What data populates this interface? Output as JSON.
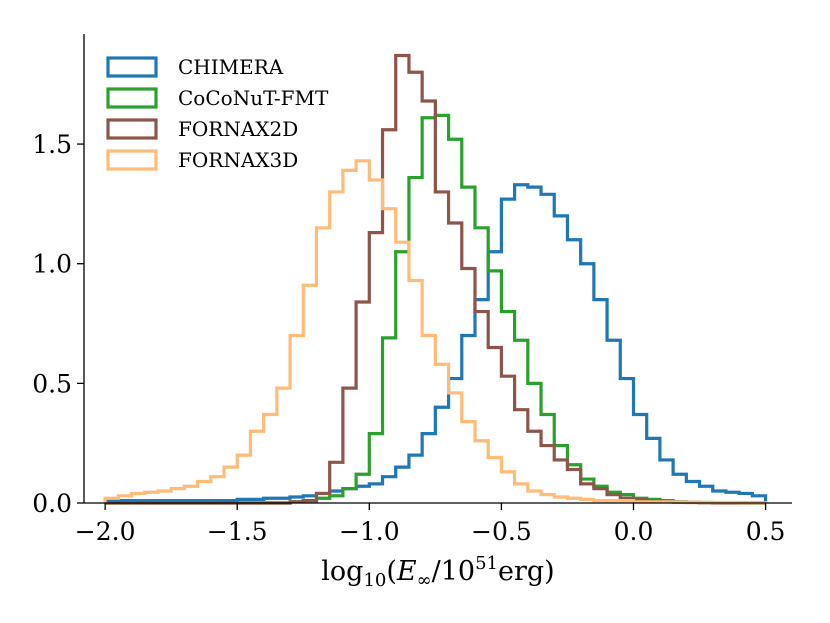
{
  "chart_data": {
    "type": "histogram",
    "xlabel": "log10(E∞/10^51 erg)",
    "ylabel": "",
    "xlim": [
      -2.08,
      0.6
    ],
    "ylim": [
      0,
      1.96
    ],
    "xticks": [
      -2.0,
      -1.5,
      -1.0,
      -0.5,
      0.0,
      0.5
    ],
    "xtick_labels": [
      "−2.0",
      "−1.5",
      "−1.0",
      "−0.5",
      "0.0",
      "0.5"
    ],
    "yticks": [
      0.0,
      0.5,
      1.0,
      1.5
    ],
    "ytick_labels": [
      "0.0",
      "0.5",
      "1.0",
      "1.5"
    ],
    "bin_edges_start": -2.0,
    "bin_width": 0.05,
    "legend_position": "top-left",
    "grid": false,
    "series": [
      {
        "name": "CHIMERA",
        "color": "#1f77b4",
        "values": [
          0.01,
          0.01,
          0.01,
          0.01,
          0.01,
          0.01,
          0.01,
          0.01,
          0.01,
          0.01,
          0.015,
          0.015,
          0.02,
          0.02,
          0.025,
          0.03,
          0.04,
          0.05,
          0.06,
          0.07,
          0.08,
          0.11,
          0.15,
          0.2,
          0.29,
          0.4,
          0.52,
          0.7,
          0.85,
          1.05,
          1.27,
          1.33,
          1.32,
          1.29,
          1.2,
          1.1,
          1.0,
          0.85,
          0.68,
          0.52,
          0.37,
          0.27,
          0.18,
          0.12,
          0.09,
          0.07,
          0.05,
          0.045,
          0.04,
          0.03
        ]
      },
      {
        "name": "CoCoNuT-FMT",
        "color": "#2ca02c",
        "values": [
          0.0,
          0.0,
          0.0,
          0.0,
          0.0,
          0.0,
          0.0,
          0.0,
          0.0,
          0.0,
          0.0,
          0.0,
          0.0,
          0.0,
          0.005,
          0.01,
          0.02,
          0.03,
          0.06,
          0.12,
          0.29,
          0.69,
          1.05,
          1.36,
          1.61,
          1.62,
          1.52,
          1.32,
          1.15,
          0.97,
          0.8,
          0.68,
          0.5,
          0.37,
          0.24,
          0.16,
          0.1,
          0.07,
          0.045,
          0.035,
          0.02,
          0.015,
          0.01,
          0.005,
          0.003,
          0.002,
          0.001,
          0.001,
          0.0,
          0.0
        ]
      },
      {
        "name": "FORNAX2D",
        "color": "#8c564b",
        "values": [
          0.0,
          0.0,
          0.0,
          0.0,
          0.0,
          0.0,
          0.0,
          0.0,
          0.0,
          0.0,
          0.0,
          0.0,
          0.0,
          0.0,
          0.005,
          0.01,
          0.04,
          0.17,
          0.48,
          0.84,
          1.13,
          1.56,
          1.87,
          1.8,
          1.68,
          1.3,
          1.17,
          0.98,
          0.8,
          0.65,
          0.53,
          0.39,
          0.3,
          0.24,
          0.18,
          0.14,
          0.08,
          0.06,
          0.035,
          0.02,
          0.015,
          0.01,
          0.005,
          0.003,
          0.002,
          0.001,
          0.0,
          0.0,
          0.0,
          0.0
        ]
      },
      {
        "name": "FORNAX3D",
        "color": "#ffbb78",
        "values": [
          0.02,
          0.03,
          0.04,
          0.045,
          0.05,
          0.06,
          0.07,
          0.09,
          0.11,
          0.15,
          0.2,
          0.3,
          0.37,
          0.48,
          0.7,
          0.91,
          1.15,
          1.3,
          1.39,
          1.43,
          1.35,
          1.23,
          1.09,
          0.93,
          0.7,
          0.58,
          0.46,
          0.34,
          0.26,
          0.19,
          0.13,
          0.08,
          0.05,
          0.035,
          0.025,
          0.02,
          0.015,
          0.01,
          0.01,
          0.01,
          0.005,
          0.005,
          0.005,
          0.003,
          0.003,
          0.002,
          0.002,
          0.002,
          0.001,
          0.001
        ]
      }
    ]
  }
}
